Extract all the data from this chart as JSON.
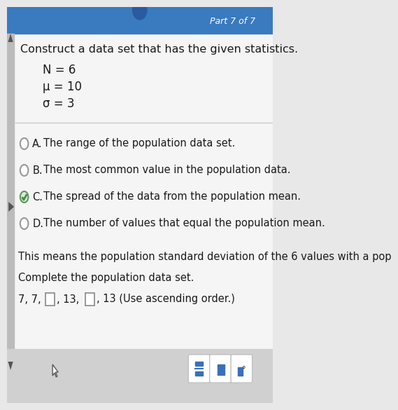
{
  "title_text": "Construct a data set that has the given statistics.",
  "stats": [
    "N = 6",
    "μ = 10",
    "σ = 3"
  ],
  "options": [
    {
      "label": "A.",
      "text": "The range of the population data set.",
      "checked": false
    },
    {
      "label": "B.",
      "text": "The most common value in the population data.",
      "checked": false
    },
    {
      "label": "C.",
      "text": "The spread of the data from the population mean.",
      "checked": true
    },
    {
      "label": "D.",
      "text": "The number of values that equal the population mean.",
      "checked": false
    }
  ],
  "paragraph1": "This means the population standard deviation of the 6 values with a pop",
  "paragraph2": "Complete the population data set.",
  "header_text": "Part 7 of 7",
  "header_bg": "#3a7abf",
  "main_bg": "#e8e8e8",
  "content_bg": "#f5f5f5",
  "white": "#ffffff",
  "text_color": "#1a1a1a",
  "radio_unchecked_edge": "#999999",
  "radio_checked_edge": "#5a9a5a",
  "radio_checked_fill": "#d8ead8",
  "check_color": "#4a8a4a",
  "separator_color": "#cccccc",
  "left_accent_color": "#bbbbbb",
  "bottom_bar_color": "#d0d0d0",
  "btn_bg": "#e8e8e8",
  "btn_border": "#bbbbbb",
  "btn_blue": "#3a6fbb",
  "box_border": "#888888",
  "cursor_color": "#555555",
  "triangle_color": "#666666",
  "font_size_header": 9,
  "font_size_title": 11.5,
  "font_size_stats": 12,
  "font_size_body": 10.5
}
